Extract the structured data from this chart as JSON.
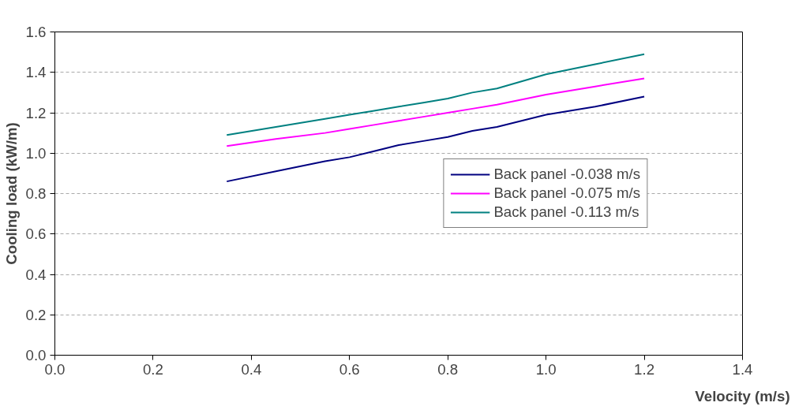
{
  "chart_data": {
    "type": "line",
    "xlabel": "Velocity (m/s)",
    "ylabel": "Cooling load (kW/m)",
    "x": [
      0.35,
      0.45,
      0.55,
      0.6,
      0.65,
      0.7,
      0.75,
      0.8,
      0.85,
      0.9,
      1.0,
      1.1,
      1.2
    ],
    "series": [
      {
        "name": "Back panel -0.038 m/s",
        "color": "#000080",
        "values": [
          0.86,
          0.91,
          0.96,
          0.98,
          1.01,
          1.04,
          1.06,
          1.08,
          1.11,
          1.13,
          1.19,
          1.23,
          1.28
        ]
      },
      {
        "name": "Back panel -0.075 m/s",
        "color": "#ff00ff",
        "values": [
          1.035,
          1.07,
          1.1,
          1.12,
          1.14,
          1.16,
          1.18,
          1.2,
          1.22,
          1.24,
          1.29,
          1.33,
          1.37
        ]
      },
      {
        "name": "Back panel -0.113 m/s",
        "color": "#008080",
        "values": [
          1.09,
          1.13,
          1.17,
          1.19,
          1.21,
          1.23,
          1.25,
          1.27,
          1.3,
          1.32,
          1.39,
          1.44,
          1.49
        ]
      }
    ],
    "xlim": [
      0,
      1.4
    ],
    "xticks": [
      {
        "value": 0,
        "label": "0.0"
      },
      0.2,
      0.4,
      0.6,
      0.8,
      {
        "value": 1,
        "label": "1.0"
      },
      1.2,
      1.4
    ],
    "ylim": [
      0,
      1.6
    ],
    "yticks": [
      {
        "value": 0,
        "label": "0.0"
      },
      0.2,
      0.4,
      0.6,
      0.8,
      {
        "value": 1,
        "label": "1.0"
      },
      1.2,
      1.4,
      1.6
    ],
    "grid": "y",
    "legend": "right",
    "marker": "none",
    "line_style": "solid"
  }
}
